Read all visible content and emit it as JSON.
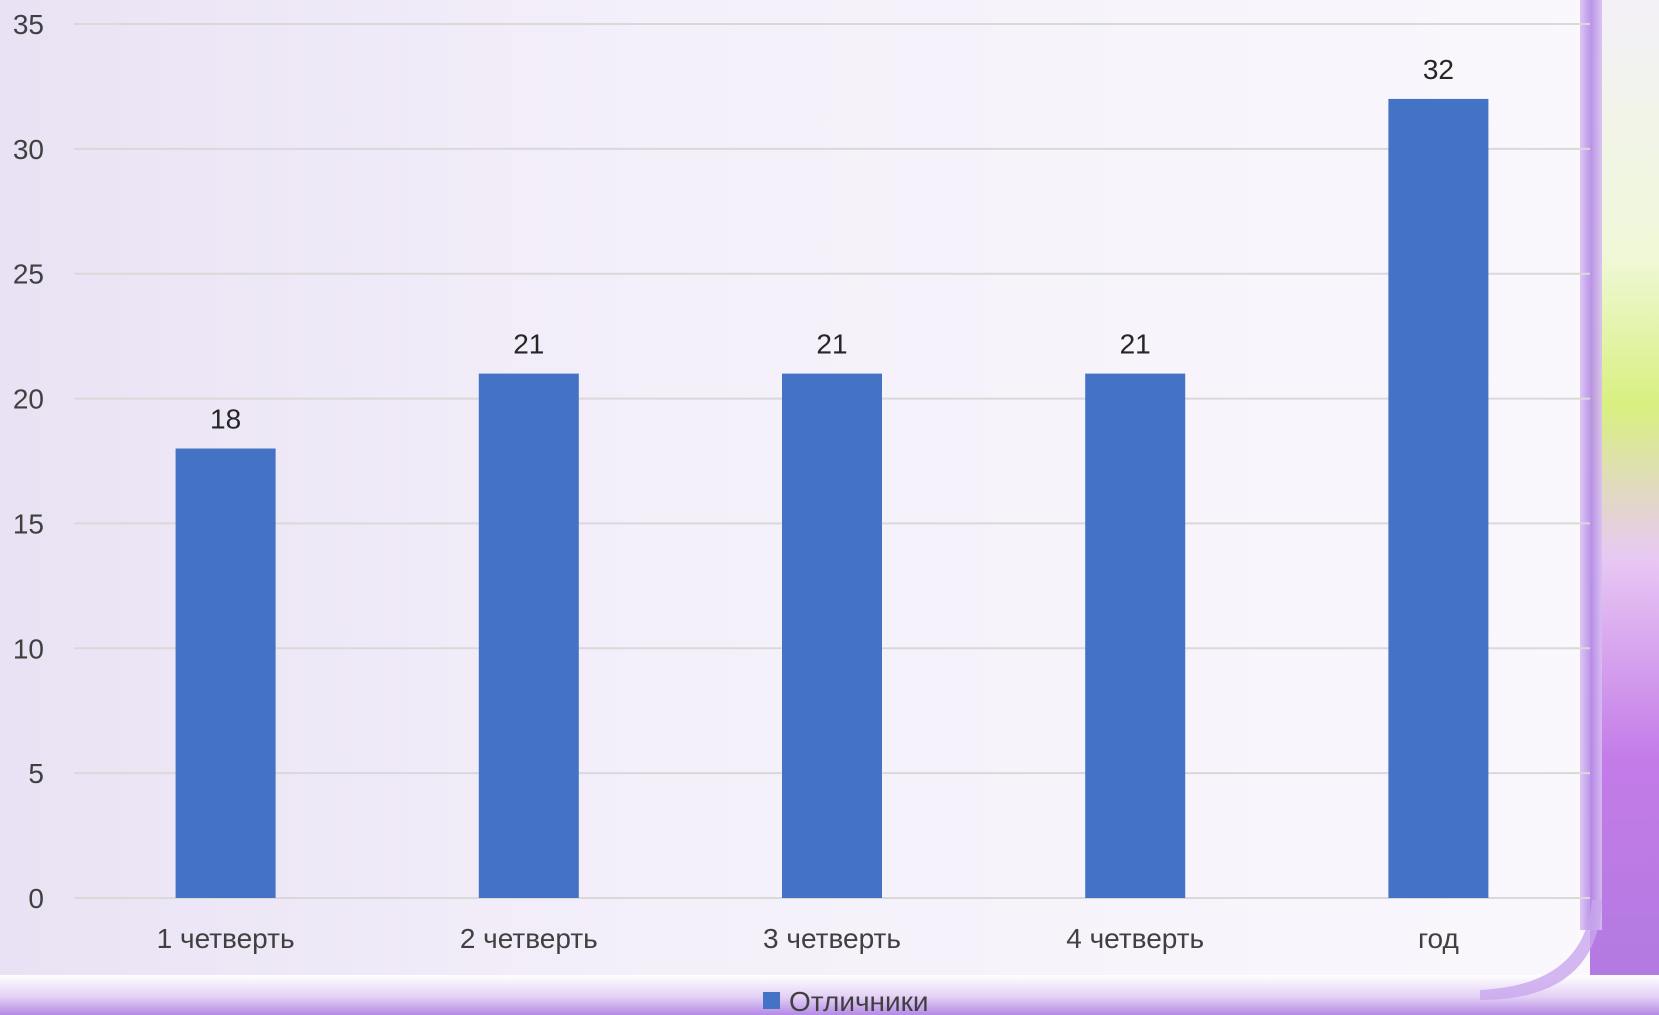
{
  "chart_data": {
    "type": "bar",
    "title": "",
    "xlabel": "",
    "ylabel": "",
    "categories": [
      "1 четверть",
      "2 четверть",
      "3 четверть",
      "4 четверть",
      "год"
    ],
    "series": [
      {
        "name": "Отличники",
        "values": [
          18,
          21,
          21,
          21,
          32
        ],
        "color": "#4472c4"
      }
    ],
    "ylim": [
      0,
      35
    ],
    "yticks": [
      "0",
      "5",
      "10",
      "15",
      "20",
      "25",
      "30",
      "35"
    ],
    "grid": true,
    "data_labels": true,
    "legend_position": "bottom"
  },
  "colors": {
    "bar": "#4472c4",
    "gridline": "#d9d9d9",
    "frame_accent": "#b48ae6",
    "decoration_green": "#d8f080",
    "decoration_purple": "#c37be8"
  }
}
